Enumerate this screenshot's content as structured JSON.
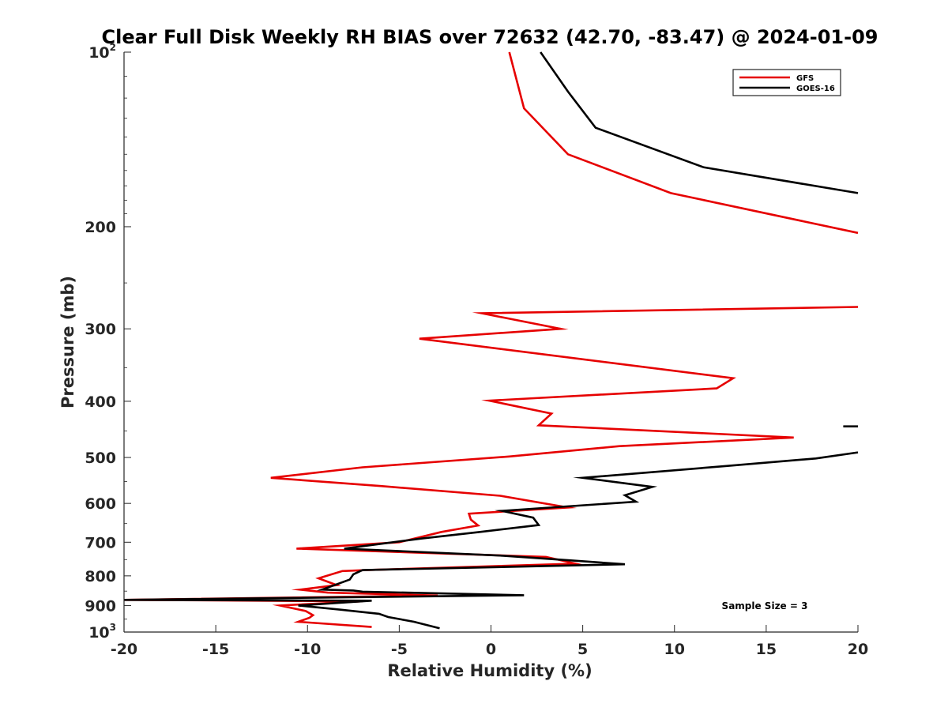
{
  "chart_data": {
    "type": "line",
    "title": "Clear Full Disk Weekly RH BIAS over 72632 (42.70, -83.47) @ 2024-01-09",
    "xlabel": "Relative Humidity (%)",
    "ylabel": "Pressure (mb)",
    "xlim": [
      -20,
      20
    ],
    "ylim": [
      100,
      1000
    ],
    "y_scale": "log",
    "y_reversed": true,
    "grid": false,
    "legend_position": "top-right",
    "x_ticks": [
      "-20",
      "-15",
      "-10",
      "-5",
      "0",
      "5",
      "10",
      "15",
      "20"
    ],
    "y_ticks": [
      {
        "value": 100,
        "base": "10",
        "exp": "2"
      },
      {
        "value": 200,
        "label": "200"
      },
      {
        "value": 300,
        "label": "300"
      },
      {
        "value": 400,
        "label": "400"
      },
      {
        "value": 500,
        "label": "500"
      },
      {
        "value": 600,
        "label": "600"
      },
      {
        "value": 700,
        "label": "700"
      },
      {
        "value": 800,
        "label": "800"
      },
      {
        "value": 900,
        "label": "900"
      },
      {
        "value": 1000,
        "base": "10",
        "exp": "3"
      }
    ],
    "annotation": "Sample Size = 3",
    "series": [
      {
        "name": "GFS",
        "color": "#e60000",
        "segments": [
          [
            [
              1.0,
              100
            ],
            [
              1.8,
              125
            ],
            [
              4.2,
              150
            ],
            [
              9.8,
              175
            ],
            [
              20.0,
              205
            ]
          ],
          [
            [
              20.0,
              275
            ],
            [
              -0.5,
              282
            ],
            [
              3.8,
              300
            ],
            [
              -3.9,
              312
            ],
            [
              13.2,
              365
            ],
            [
              12.3,
              380
            ],
            [
              -0.1,
              399
            ],
            [
              3.3,
              420
            ],
            [
              2.6,
              440
            ],
            [
              16.5,
              462
            ],
            [
              7.0,
              478
            ],
            [
              1.0,
              498
            ],
            [
              -7.0,
              520
            ],
            [
              -12.0,
              542
            ],
            [
              -6.0,
              560
            ],
            [
              0.5,
              582
            ],
            [
              4.2,
              610
            ],
            [
              -1.2,
              625
            ],
            [
              -1.1,
              640
            ],
            [
              -0.7,
              655
            ],
            [
              -2.7,
              672
            ],
            [
              -5.0,
              700
            ],
            [
              -10.6,
              718
            ],
            [
              3.0,
              742
            ],
            [
              4.6,
              762
            ],
            [
              -6.8,
              782
            ],
            [
              -8.1,
              785
            ],
            [
              -9.4,
              808
            ],
            [
              -8.4,
              830
            ],
            [
              -10.4,
              845
            ],
            [
              -8.9,
              855
            ],
            [
              -2.9,
              865
            ],
            [
              -20.0,
              880
            ],
            [
              -7.0,
              885
            ],
            [
              -11.5,
              900
            ],
            [
              -10.1,
              920
            ],
            [
              -9.7,
              935
            ],
            [
              -9.9,
              945
            ],
            [
              -10.5,
              960
            ],
            [
              -6.5,
              980
            ]
          ]
        ]
      },
      {
        "name": "GOES-16",
        "color": "#000000",
        "segments": [
          [
            [
              2.7,
              100
            ],
            [
              4.2,
              117
            ],
            [
              5.7,
              135
            ],
            [
              11.6,
              158
            ],
            [
              20.0,
              175
            ]
          ],
          [
            [
              19.2,
              442
            ],
            [
              20.0,
              442
            ]
          ],
          [
            [
              20.0,
              490
            ],
            [
              17.7,
              502
            ],
            [
              12.9,
              517
            ],
            [
              5.0,
              542
            ],
            [
              8.8,
              562
            ],
            [
              7.3,
              581
            ],
            [
              7.9,
              596
            ],
            [
              0.6,
              618
            ],
            [
              2.3,
              635
            ],
            [
              2.6,
              654
            ],
            [
              -0.6,
              672
            ],
            [
              -3.8,
              690
            ],
            [
              -8.0,
              718
            ],
            [
              0.5,
              738
            ],
            [
              4.2,
              752
            ],
            [
              7.3,
              764
            ],
            [
              -7.0,
              782
            ],
            [
              -7.5,
              795
            ],
            [
              -7.7,
              812
            ],
            [
              -9.2,
              845
            ],
            [
              -7.5,
              848
            ],
            [
              -7.0,
              852
            ],
            [
              1.8,
              864
            ],
            [
              -20.0,
              880
            ],
            [
              -6.5,
              883
            ],
            [
              -10.5,
              900
            ],
            [
              -8.2,
              915
            ],
            [
              -6.1,
              930
            ],
            [
              -5.6,
              942
            ],
            [
              -4.2,
              960
            ],
            [
              -2.8,
              985
            ]
          ]
        ]
      }
    ]
  }
}
